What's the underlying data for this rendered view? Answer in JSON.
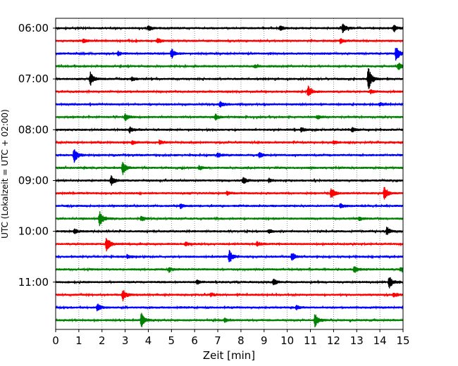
{
  "chart_data": {
    "type": "line",
    "subtype": "helicorder",
    "xlabel": "Zeit  [min]",
    "ylabel": "UTC (Lokalzeit = UTC + 02:00)",
    "xlim": [
      0,
      15
    ],
    "x_ticks": [
      0,
      1,
      2,
      3,
      4,
      5,
      6,
      7,
      8,
      9,
      10,
      11,
      12,
      13,
      14,
      15
    ],
    "x_tick_labels": [
      "0",
      "1",
      "2",
      "3",
      "4",
      "5",
      "6",
      "7",
      "8",
      "9",
      "10",
      "11",
      "12",
      "13",
      "14",
      "15"
    ],
    "y_tick_labels": [
      "06:00",
      "07:00",
      "08:00",
      "09:00",
      "10:00",
      "11:00"
    ],
    "y_tick_traces": [
      0,
      4,
      8,
      12,
      16,
      20
    ],
    "minutes_per_trace": 15,
    "vertical_grid": true,
    "grid_style": "dotted",
    "trace_colors": [
      "#000000",
      "#ff0000",
      "#0000ff",
      "#008000"
    ],
    "traces": [
      {
        "start": "06:00",
        "color": "#000000",
        "events": [
          [
            4.0,
            0.5
          ],
          [
            9.7,
            0.35
          ],
          [
            12.4,
            0.7
          ],
          [
            14.6,
            0.5
          ]
        ]
      },
      {
        "start": "06:15",
        "color": "#ff0000",
        "events": [
          [
            1.2,
            0.3
          ],
          [
            4.4,
            0.4
          ],
          [
            12.3,
            0.45
          ]
        ]
      },
      {
        "start": "06:30",
        "color": "#0000ff",
        "events": [
          [
            5.0,
            0.8
          ],
          [
            2.7,
            0.3
          ],
          [
            14.7,
            1.3
          ]
        ]
      },
      {
        "start": "06:45",
        "color": "#008000",
        "events": [
          [
            14.8,
            0.6
          ],
          [
            8.6,
            0.25
          ]
        ]
      },
      {
        "start": "07:00",
        "color": "#000000",
        "events": [
          [
            1.5,
            1.2
          ],
          [
            13.5,
            1.9
          ],
          [
            3.3,
            0.3
          ]
        ]
      },
      {
        "start": "07:15",
        "color": "#ff0000",
        "events": [
          [
            10.9,
            0.9
          ],
          [
            13.6,
            0.3
          ]
        ]
      },
      {
        "start": "07:30",
        "color": "#0000ff",
        "events": [
          [
            7.1,
            0.5
          ],
          [
            14.0,
            0.3
          ]
        ]
      },
      {
        "start": "07:45",
        "color": "#008000",
        "events": [
          [
            3.0,
            0.6
          ],
          [
            6.9,
            0.45
          ],
          [
            11.3,
            0.3
          ]
        ]
      },
      {
        "start": "08:00",
        "color": "#000000",
        "events": [
          [
            3.2,
            0.45
          ],
          [
            10.6,
            0.4
          ],
          [
            12.8,
            0.4
          ]
        ]
      },
      {
        "start": "08:15",
        "color": "#ff0000",
        "events": [
          [
            3.3,
            0.3
          ],
          [
            4.5,
            0.3
          ],
          [
            12.0,
            0.3
          ]
        ]
      },
      {
        "start": "08:30",
        "color": "#0000ff",
        "events": [
          [
            0.8,
            1.3
          ],
          [
            7.0,
            0.4
          ],
          [
            8.8,
            0.4
          ]
        ]
      },
      {
        "start": "08:45",
        "color": "#008000",
        "events": [
          [
            2.9,
            1.1
          ],
          [
            6.2,
            0.35
          ]
        ]
      },
      {
        "start": "09:00",
        "color": "#000000",
        "events": [
          [
            2.4,
            0.8
          ],
          [
            8.1,
            0.6
          ],
          [
            9.2,
            0.3
          ]
        ]
      },
      {
        "start": "09:15",
        "color": "#ff0000",
        "events": [
          [
            11.9,
            1.0
          ],
          [
            14.2,
            1.2
          ],
          [
            7.4,
            0.3
          ]
        ]
      },
      {
        "start": "09:30",
        "color": "#0000ff",
        "events": [
          [
            5.4,
            0.4
          ],
          [
            12.3,
            0.35
          ]
        ]
      },
      {
        "start": "09:45",
        "color": "#008000",
        "events": [
          [
            1.9,
            1.3
          ],
          [
            3.7,
            0.45
          ],
          [
            13.1,
            0.3
          ]
        ]
      },
      {
        "start": "10:00",
        "color": "#000000",
        "events": [
          [
            14.3,
            0.7
          ],
          [
            0.8,
            0.4
          ],
          [
            9.2,
            0.35
          ]
        ]
      },
      {
        "start": "10:15",
        "color": "#ff0000",
        "events": [
          [
            2.2,
            1.2
          ],
          [
            8.7,
            0.35
          ],
          [
            5.6,
            0.3
          ]
        ]
      },
      {
        "start": "10:30",
        "color": "#0000ff",
        "events": [
          [
            7.5,
            1.0
          ],
          [
            10.2,
            0.7
          ],
          [
            3.1,
            0.3
          ]
        ]
      },
      {
        "start": "10:45",
        "color": "#008000",
        "events": [
          [
            12.9,
            0.6
          ],
          [
            4.9,
            0.4
          ],
          [
            14.9,
            0.35
          ]
        ]
      },
      {
        "start": "11:00",
        "color": "#000000",
        "events": [
          [
            14.4,
            1.0
          ],
          [
            9.4,
            0.55
          ],
          [
            6.1,
            0.3
          ]
        ]
      },
      {
        "start": "11:15",
        "color": "#ff0000",
        "events": [
          [
            2.9,
            0.9
          ],
          [
            6.7,
            0.3
          ],
          [
            14.6,
            0.35
          ]
        ]
      },
      {
        "start": "11:30",
        "color": "#0000ff",
        "events": [
          [
            1.8,
            0.7
          ],
          [
            10.4,
            0.3
          ]
        ]
      },
      {
        "start": "11:45",
        "color": "#008000",
        "events": [
          [
            3.7,
            1.2
          ],
          [
            11.2,
            1.1
          ],
          [
            7.3,
            0.3
          ]
        ]
      }
    ]
  }
}
